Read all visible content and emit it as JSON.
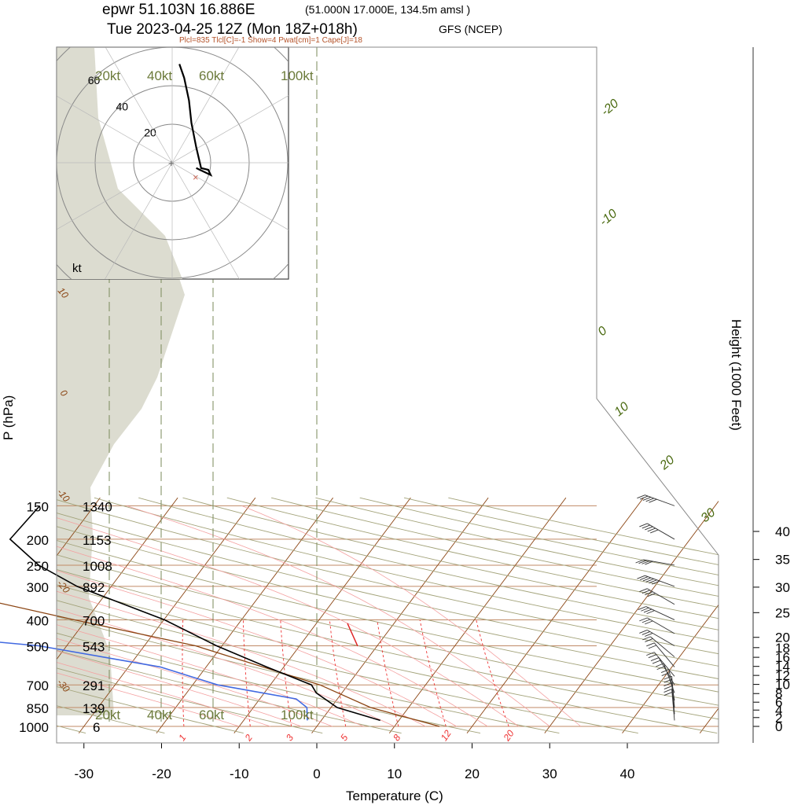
{
  "header": {
    "line1_main": "epwr 51.103N 16.886E",
    "line1_sub": "(51.000N 17.000E, 134.5m amsl )",
    "line2_main": "Tue 2023-04-25 12Z (Mon 18Z+018h)",
    "line2_sub": "GFS (NCEP)",
    "summary": "Plcl=835 Tlcl[C]=-1 Show=4 Pwat[cm]=1 Cape[J]=18"
  },
  "colors": {
    "temperature": "#000000",
    "dewpoint": "#4169e1",
    "parcel": "#8b4513",
    "isobar": "#c08a66",
    "isotherm_tilted": "#8b4513",
    "dry_adiabat": "#a3a37a",
    "moist_adiabat": "#f4a0a0",
    "mixing_ratio": "#ee3333",
    "hodo_bg": "#dcdcd0",
    "label_green": "#4a6a10",
    "label_brown": "#8b4513",
    "wind_kt_label": "#6b7a3a"
  },
  "chart_data": {
    "type": "skew-t log-p",
    "xlabel": "Temperature (C)",
    "ylabel": "P (hPa)",
    "right_label": "Height (1000 Feet)",
    "x_ticks": [
      -30,
      -20,
      -10,
      0,
      10,
      20,
      30,
      40
    ],
    "xlim": [
      -33.5,
      46
    ],
    "pressure_levels": [
      150,
      200,
      250,
      300,
      400,
      500,
      700,
      850,
      1000
    ],
    "geopotential_labels": [
      "1340",
      "1153",
      "1008",
      "892",
      "700",
      "543",
      "291",
      "139",
      "6"
    ],
    "height_ticks": [
      0,
      2,
      4,
      6,
      8,
      10,
      12,
      14,
      16,
      18,
      20,
      25,
      30,
      35,
      40
    ],
    "height_pressure": [
      1000,
      927,
      869,
      812,
      754,
      697,
      645,
      597,
      552,
      508,
      465,
      376,
      302,
      238,
      187
    ],
    "isotherm_labels": [
      -30,
      -20,
      -10,
      0,
      10,
      20,
      30
    ],
    "isotherm_left_labels": [
      10,
      0,
      -10,
      -20,
      -30
    ],
    "mixing_ratio_labels": [
      "1",
      "2",
      "3",
      "5",
      "8",
      "12",
      "20"
    ],
    "wind_speed_labels": [
      "20kt",
      "40kt",
      "60kt",
      "100kt"
    ],
    "temperature_profile": [
      {
        "p": 150,
        "t": -57.0
      },
      {
        "p": 200,
        "t": -57.6
      },
      {
        "p": 250,
        "t": -51.4
      },
      {
        "p": 300,
        "t": -44.4
      },
      {
        "p": 400,
        "t": -29.9
      },
      {
        "p": 500,
        "t": -20.7
      },
      {
        "p": 600,
        "t": -12.2
      },
      {
        "p": 700,
        "t": -4.7
      },
      {
        "p": 750,
        "t": -3.3
      },
      {
        "p": 850,
        "t": 0.8
      },
      {
        "p": 950,
        "t": 7.6
      }
    ],
    "dewpoint_profile": [
      {
        "p": 150,
        "t": -87.4
      },
      {
        "p": 200,
        "t": -93.0
      },
      {
        "p": 250,
        "t": -79.4
      },
      {
        "p": 300,
        "t": -72.5
      },
      {
        "p": 400,
        "t": -65.0
      },
      {
        "p": 440,
        "t": -66.0
      },
      {
        "p": 500,
        "t": -43.6
      },
      {
        "p": 600,
        "t": -25.9
      },
      {
        "p": 700,
        "t": -16.8
      },
      {
        "p": 790,
        "t": -5.3
      },
      {
        "p": 850,
        "t": -3.1
      },
      {
        "p": 950,
        "t": -1.8
      }
    ],
    "parcel_profile": [
      {
        "p": 250,
        "t": -70.0
      },
      {
        "p": 300,
        "t": -64.0
      },
      {
        "p": 400,
        "t": -41.5
      },
      {
        "p": 500,
        "t": -23.4
      },
      {
        "p": 700,
        "t": -3.6
      },
      {
        "p": 850,
        "t": 5.1
      },
      {
        "p": 1000,
        "t": 15.8
      }
    ],
    "hodograph": {
      "rings_kt": [
        20,
        40,
        60
      ],
      "trace_uv_kt": [
        [
          10,
          6
        ],
        [
          16,
          2
        ],
        [
          15,
          5
        ],
        [
          12,
          6
        ],
        [
          10,
          18
        ],
        [
          8,
          32
        ],
        [
          7,
          45
        ],
        [
          5,
          58
        ],
        [
          3,
          66
        ]
      ]
    },
    "wind_barbs": [
      {
        "p": 150,
        "dir": 290,
        "kt": 50
      },
      {
        "p": 200,
        "dir": 300,
        "kt": 45
      },
      {
        "p": 250,
        "dir": 280,
        "kt": 40
      },
      {
        "p": 300,
        "dir": 290,
        "kt": 55
      },
      {
        "p": 350,
        "dir": 300,
        "kt": 40
      },
      {
        "p": 400,
        "dir": 295,
        "kt": 35
      },
      {
        "p": 450,
        "dir": 300,
        "kt": 30
      },
      {
        "p": 500,
        "dir": 300,
        "kt": 25
      },
      {
        "p": 550,
        "dir": 310,
        "kt": 20
      },
      {
        "p": 600,
        "dir": 320,
        "kt": 20
      },
      {
        "p": 650,
        "dir": 320,
        "kt": 15
      },
      {
        "p": 700,
        "dir": 330,
        "kt": 15
      },
      {
        "p": 750,
        "dir": 340,
        "kt": 15
      },
      {
        "p": 800,
        "dir": 350,
        "kt": 15
      },
      {
        "p": 850,
        "dir": 355,
        "kt": 15
      },
      {
        "p": 900,
        "dir": 355,
        "kt": 15
      },
      {
        "p": 950,
        "dir": 355,
        "kt": 15
      }
    ]
  }
}
